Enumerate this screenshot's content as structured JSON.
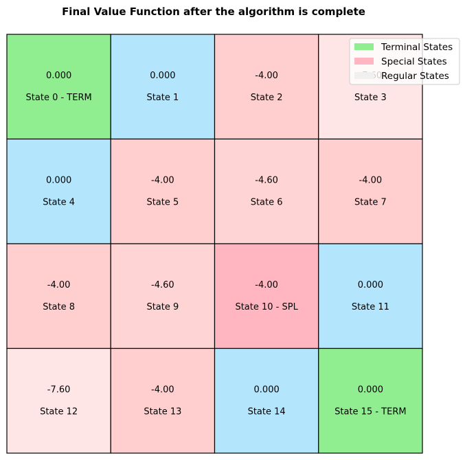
{
  "chart_data": {
    "type": "heatmap",
    "title": "Final Value Function after the algorithm is complete",
    "rows": 4,
    "cols": 4,
    "cells": [
      {
        "state": 0,
        "label": "State 0 - TERM",
        "value": "0.000",
        "color": "#90ee90"
      },
      {
        "state": 1,
        "label": "State 1",
        "value": "0.000",
        "color": "#b3e5fc"
      },
      {
        "state": 2,
        "label": "State 2",
        "value": "-4.00",
        "color": "#ffcfcf"
      },
      {
        "state": 3,
        "label": "State 3",
        "value": "-7.60",
        "color": "#ffe6e6"
      },
      {
        "state": 4,
        "label": "State 4",
        "value": "0.000",
        "color": "#b3e5fc"
      },
      {
        "state": 5,
        "label": "State 5",
        "value": "-4.00",
        "color": "#ffcfcf"
      },
      {
        "state": 6,
        "label": "State 6",
        "value": "-4.60",
        "color": "#ffd4d4"
      },
      {
        "state": 7,
        "label": "State 7",
        "value": "-4.00",
        "color": "#ffcfcf"
      },
      {
        "state": 8,
        "label": "State 8",
        "value": "-4.00",
        "color": "#ffcfcf"
      },
      {
        "state": 9,
        "label": "State 9",
        "value": "-4.60",
        "color": "#ffd4d4"
      },
      {
        "state": 10,
        "label": "State 10 - SPL",
        "value": "-4.00",
        "color": "#ffb6c1"
      },
      {
        "state": 11,
        "label": "State 11",
        "value": "0.000",
        "color": "#b3e5fc"
      },
      {
        "state": 12,
        "label": "State 12",
        "value": "-7.60",
        "color": "#ffe6e6"
      },
      {
        "state": 13,
        "label": "State 13",
        "value": "-4.00",
        "color": "#ffcfcf"
      },
      {
        "state": 14,
        "label": "State 14",
        "value": "0.000",
        "color": "#b3e5fc"
      },
      {
        "state": 15,
        "label": "State 15 - TERM",
        "value": "0.000",
        "color": "#90ee90"
      }
    ],
    "legend": {
      "placement": "top-right",
      "items": [
        {
          "label": "Terminal States",
          "color": "#90ee90"
        },
        {
          "label": "Special States",
          "color": "#ffb6c1"
        },
        {
          "label": "Regular States",
          "color": "#f0f0f0"
        }
      ]
    }
  }
}
